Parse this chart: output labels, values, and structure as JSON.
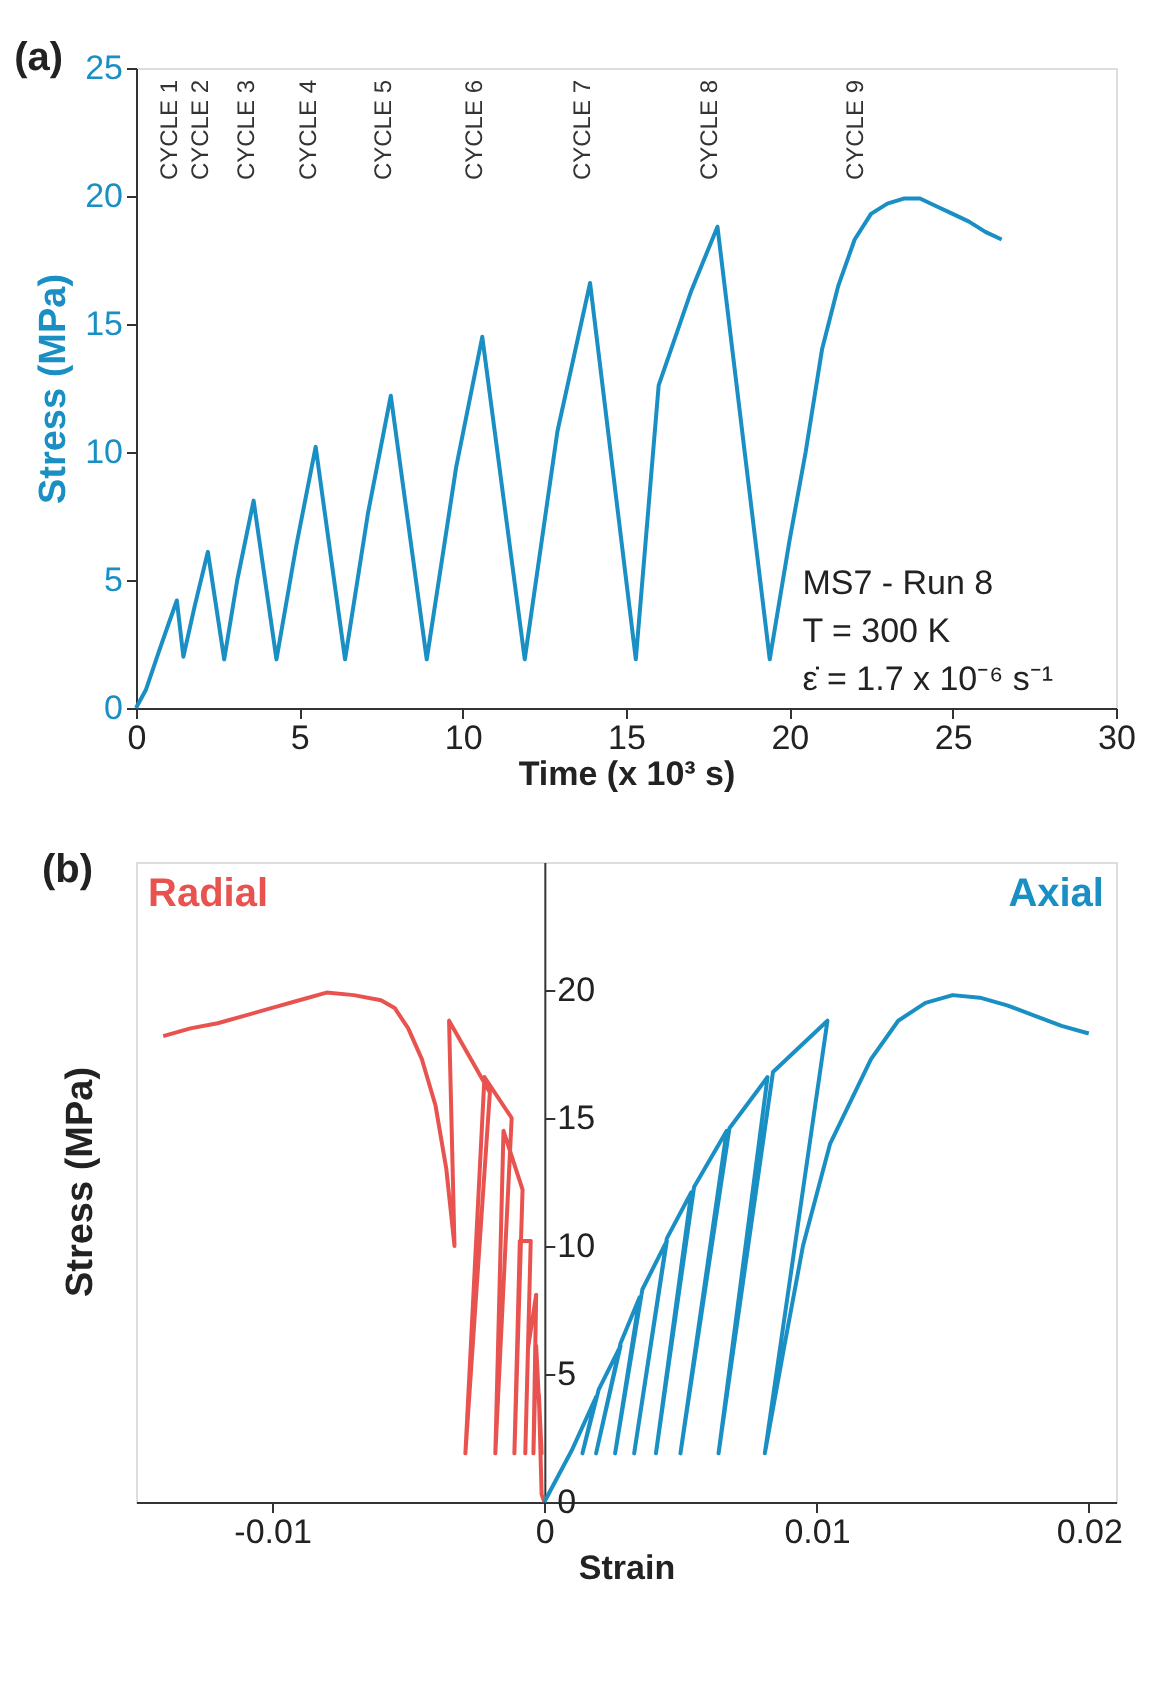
{
  "chart_data": [
    {
      "type": "line",
      "title": "(a)",
      "xlabel": "Time (x 10³ s)",
      "ylabel": "Stress (MPa)",
      "xlim": [
        0,
        30
      ],
      "ylim": [
        0,
        25
      ],
      "xticks": [
        0,
        5,
        10,
        15,
        20,
        25,
        30
      ],
      "yticks": [
        0,
        5,
        10,
        15,
        20,
        25
      ],
      "grid": false,
      "line_style": "solid",
      "marker": "none",
      "series": [
        {
          "color": "#1a8fc4",
          "x": [
            0,
            0.3,
            0.7,
            1.0,
            1.25,
            1.45,
            1.8,
            2.2,
            2.7,
            3.1,
            3.6,
            4.3,
            4.9,
            5.5,
            6.4,
            7.1,
            7.8,
            8.9,
            9.8,
            10.6,
            11.9,
            12.9,
            13.9,
            15.3,
            16.0,
            17.0,
            17.8,
            19.4,
            20.0,
            20.5,
            21.0,
            21.5,
            22.0,
            22.5,
            23.0,
            23.5,
            24.0,
            24.5,
            25.0,
            25.5,
            26.0,
            26.5
          ],
          "values": [
            0,
            0.7,
            2.2,
            3.3,
            4.2,
            2.0,
            4.0,
            6.1,
            1.9,
            5.0,
            8.1,
            1.9,
            6.3,
            10.2,
            1.9,
            7.6,
            12.2,
            1.9,
            9.4,
            14.5,
            1.9,
            10.8,
            16.6,
            1.9,
            12.6,
            16.3,
            18.8,
            1.9,
            6.5,
            10.0,
            14.0,
            16.5,
            18.3,
            19.3,
            19.7,
            19.9,
            19.9,
            19.6,
            19.3,
            19.0,
            18.6,
            18.3
          ]
        }
      ],
      "annotations": [
        "CYCLE 1",
        "CYCLE 2",
        "CYCLE 3",
        "CYCLE 4",
        "CYCLE 5",
        "CYCLE 6",
        "CYCLE 7",
        "CYCLE 8",
        "CYCLE 9",
        "MS7 - Run 8",
        "T = 300 K",
        "ε̇ = 1.7 x 10⁻⁶ s⁻¹"
      ]
    },
    {
      "type": "line",
      "title": "(b)",
      "xlabel": "Strain",
      "ylabel": "Stress (MPa)",
      "xlim": [
        -0.015,
        0.021
      ],
      "ylim": [
        0,
        25
      ],
      "xticks": [
        -0.01,
        0,
        0.01,
        0.02
      ],
      "yticks": [
        0,
        5,
        10,
        15,
        20
      ],
      "grid": false,
      "line_style": "solid",
      "marker": "none",
      "series": [
        {
          "name": "Radial",
          "color": "#e8534f",
          "x": [
            0,
            -0.0001,
            -0.0002,
            -0.0001,
            -0.0003,
            -0.0004,
            -0.0003,
            -0.0006,
            -0.0007,
            -0.0005,
            -0.0009,
            -0.0011,
            -0.0008,
            -0.0015,
            -0.0018,
            -0.0012,
            -0.0022,
            -0.0029,
            -0.002,
            -0.0035,
            -0.0033,
            -0.0036,
            -0.004,
            -0.0045,
            -0.005,
            -0.0055,
            -0.006,
            -0.007,
            -0.008,
            -0.009,
            -0.01,
            -0.011,
            -0.012,
            -0.013,
            -0.014
          ],
          "values": [
            0,
            0.3,
            4.2,
            1.9,
            6.1,
            1.9,
            8.1,
            6.0,
            1.9,
            10.2,
            10.2,
            1.9,
            12.2,
            14.5,
            1.9,
            15.0,
            16.6,
            1.9,
            16.0,
            18.8,
            10.0,
            13.0,
            15.5,
            17.3,
            18.5,
            19.3,
            19.6,
            19.8,
            19.9,
            19.6,
            19.3,
            19.0,
            18.7,
            18.5,
            18.2
          ]
        },
        {
          "name": "Axial",
          "color": "#1a8fc4",
          "x": [
            0,
            0.001,
            0.0019,
            0.0014,
            0.002,
            0.0028,
            0.0019,
            0.0028,
            0.0035,
            0.0026,
            0.0036,
            0.0045,
            0.0033,
            0.0045,
            0.0054,
            0.0041,
            0.0055,
            0.0067,
            0.005,
            0.0068,
            0.0082,
            0.0064,
            0.0084,
            0.0104,
            0.0081,
            0.0088,
            0.0095,
            0.0105,
            0.012,
            0.013,
            0.014,
            0.015,
            0.016,
            0.017,
            0.018,
            0.019,
            0.02
          ],
          "values": [
            0,
            2.0,
            4.1,
            1.9,
            4.4,
            6.1,
            1.9,
            6.2,
            8.0,
            1.9,
            8.3,
            10.2,
            1.9,
            10.3,
            12.1,
            1.9,
            12.3,
            14.5,
            1.9,
            14.6,
            16.6,
            1.9,
            16.8,
            18.8,
            1.9,
            6.0,
            10.0,
            14.0,
            17.3,
            18.8,
            19.5,
            19.8,
            19.7,
            19.4,
            19.0,
            18.6,
            18.3
          ]
        }
      ]
    }
  ]
}
